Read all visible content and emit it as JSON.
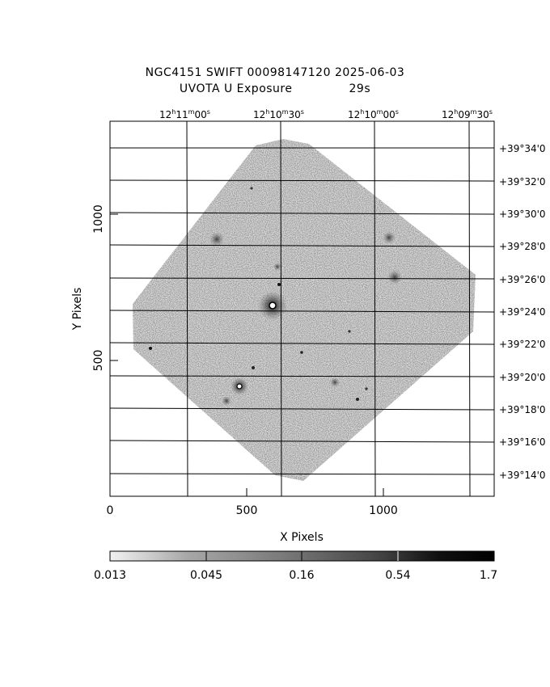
{
  "header": {
    "title_line1": "NGC4151 SWIFT 00098147120 2025-06-03",
    "title_line2": "UVOTA U Exposure",
    "exposure": "29s"
  },
  "axes": {
    "xlabel": "X Pixels",
    "ylabel": "Y Pixels",
    "x_ticks": [
      "0",
      "500",
      "1000"
    ],
    "y_ticks": [
      "500",
      "1000"
    ],
    "ra_ticks": [
      {
        "h": "12",
        "m": "11",
        "s": "00"
      },
      {
        "h": "12",
        "m": "10",
        "s": "30"
      },
      {
        "h": "12",
        "m": "10",
        "s": "00"
      },
      {
        "h": "12",
        "m": "09",
        "s": "30"
      }
    ],
    "dec_ticks": [
      "+39°34'0",
      "+39°32'0",
      "+39°30'0",
      "+39°28'0",
      "+39°26'0",
      "+39°24'0",
      "+39°22'0",
      "+39°20'0",
      "+39°18'0",
      "+39°16'0",
      "+39°14'0"
    ]
  },
  "colorbar": {
    "labels": [
      "0.013",
      "0.045",
      "0.16",
      "0.54",
      "1.7"
    ]
  },
  "colors": {
    "background": "#ffffff",
    "frame": "#000000",
    "noise": "#5a5a5a"
  }
}
